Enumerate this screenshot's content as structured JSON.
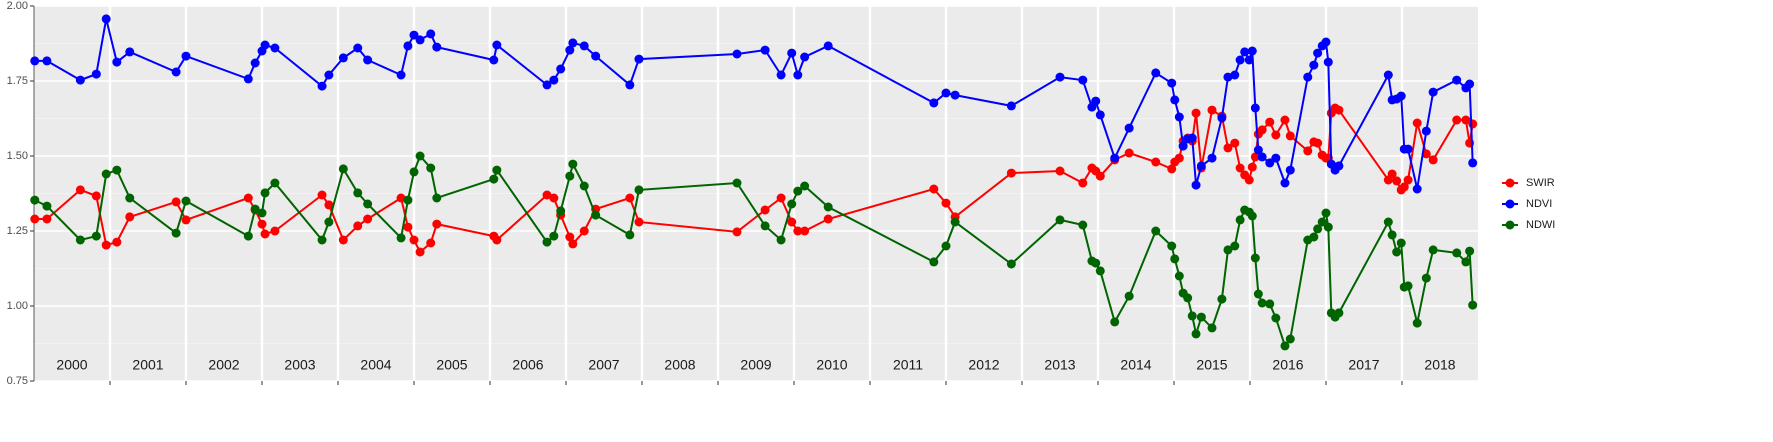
{
  "chart_data": {
    "type": "line",
    "x": [
      2000.01,
      2000.17,
      2000.61,
      2000.82,
      2000.95,
      2001.09,
      2001.26,
      2001.87,
      2002.0,
      2002.82,
      2002.91,
      2003.0,
      2003.04,
      2003.17,
      2003.79,
      2003.88,
      2004.07,
      2004.26,
      2004.39,
      2004.83,
      2004.92,
      2005.0,
      2005.08,
      2005.22,
      2005.3,
      2006.05,
      2006.09,
      2006.75,
      2006.84,
      2006.93,
      2007.05,
      2007.09,
      2007.24,
      2007.39,
      2007.84,
      2007.96,
      2009.25,
      2009.62,
      2009.83,
      2009.97,
      2010.05,
      2010.14,
      2010.45,
      2011.84,
      2012.0,
      2012.12,
      2012.86,
      2013.5,
      2013.8,
      2013.92,
      2013.97,
      2014.03,
      2014.22,
      2014.41,
      2014.76,
      2014.97,
      2015.01,
      2015.07,
      2015.12,
      2015.18,
      2015.24,
      2015.29,
      2015.36,
      2015.5,
      2015.63,
      2015.71,
      2015.8,
      2015.87,
      2015.93,
      2015.99,
      2016.03,
      2016.07,
      2016.11,
      2016.16,
      2016.26,
      2016.34,
      2016.46,
      2016.53,
      2016.76,
      2016.84,
      2016.89,
      2016.95,
      2017.0,
      2017.03,
      2017.07,
      2017.12,
      2017.17,
      2017.82,
      2017.87,
      2017.93,
      2017.99,
      2018.03,
      2018.08,
      2018.2,
      2018.32,
      2018.41,
      2018.72,
      2018.84,
      2018.89,
      2018.93
    ],
    "series": [
      {
        "name": "SWIR",
        "color": "#ff0000",
        "values": [
          1.29,
          1.29,
          1.387,
          1.367,
          1.203,
          1.213,
          1.297,
          1.347,
          1.287,
          1.36,
          1.32,
          1.273,
          1.24,
          1.25,
          1.37,
          1.337,
          1.22,
          1.267,
          1.29,
          1.36,
          1.263,
          1.22,
          1.18,
          1.21,
          1.273,
          1.233,
          1.22,
          1.37,
          1.36,
          1.303,
          1.23,
          1.207,
          1.25,
          1.323,
          1.36,
          1.28,
          1.247,
          1.32,
          1.36,
          1.28,
          1.25,
          1.25,
          1.29,
          1.39,
          1.343,
          1.297,
          1.443,
          1.45,
          1.41,
          1.46,
          1.45,
          1.433,
          1.487,
          1.51,
          1.48,
          1.457,
          1.48,
          1.493,
          1.55,
          1.56,
          1.55,
          1.643,
          1.46,
          1.653,
          1.633,
          1.527,
          1.543,
          1.46,
          1.437,
          1.42,
          1.463,
          1.497,
          1.573,
          1.587,
          1.613,
          1.57,
          1.62,
          1.567,
          1.517,
          1.547,
          1.543,
          1.503,
          1.493,
          1.493,
          1.643,
          1.66,
          1.653,
          1.42,
          1.44,
          1.417,
          1.387,
          1.397,
          1.42,
          1.61,
          1.507,
          1.487,
          1.62,
          1.62,
          1.543,
          1.607
        ]
      },
      {
        "name": "NDVI",
        "color": "#0000ff",
        "values": [
          1.817,
          1.817,
          1.753,
          1.773,
          1.957,
          1.813,
          1.847,
          1.78,
          1.833,
          1.757,
          1.81,
          1.85,
          1.87,
          1.86,
          1.733,
          1.77,
          1.827,
          1.86,
          1.82,
          1.77,
          1.867,
          1.903,
          1.887,
          1.907,
          1.863,
          1.82,
          1.87,
          1.737,
          1.753,
          1.79,
          1.853,
          1.877,
          1.867,
          1.833,
          1.737,
          1.823,
          1.84,
          1.853,
          1.77,
          1.843,
          1.77,
          1.83,
          1.867,
          1.677,
          1.71,
          1.703,
          1.667,
          1.763,
          1.753,
          1.663,
          1.683,
          1.637,
          1.493,
          1.593,
          1.777,
          1.743,
          1.687,
          1.63,
          1.533,
          1.557,
          1.56,
          1.403,
          1.467,
          1.493,
          1.627,
          1.763,
          1.77,
          1.82,
          1.847,
          1.82,
          1.85,
          1.66,
          1.52,
          1.497,
          1.477,
          1.493,
          1.41,
          1.453,
          1.763,
          1.803,
          1.843,
          1.867,
          1.88,
          1.813,
          1.473,
          1.453,
          1.467,
          1.77,
          1.687,
          1.69,
          1.7,
          1.523,
          1.523,
          1.39,
          1.583,
          1.713,
          1.753,
          1.727,
          1.74,
          1.477
        ]
      },
      {
        "name": "NDWI",
        "color": "#006400",
        "values": [
          1.353,
          1.333,
          1.22,
          1.233,
          1.44,
          1.453,
          1.36,
          1.243,
          1.35,
          1.233,
          1.323,
          1.31,
          1.377,
          1.41,
          1.22,
          1.28,
          1.457,
          1.377,
          1.34,
          1.227,
          1.353,
          1.447,
          1.5,
          1.46,
          1.36,
          1.423,
          1.453,
          1.213,
          1.233,
          1.317,
          1.433,
          1.473,
          1.4,
          1.303,
          1.237,
          1.387,
          1.41,
          1.267,
          1.22,
          1.34,
          1.383,
          1.4,
          1.33,
          1.147,
          1.2,
          1.28,
          1.14,
          1.287,
          1.27,
          1.15,
          1.143,
          1.117,
          0.947,
          1.033,
          1.25,
          1.2,
          1.157,
          1.1,
          1.043,
          1.027,
          0.967,
          0.907,
          0.963,
          0.927,
          1.023,
          1.187,
          1.2,
          1.287,
          1.32,
          1.313,
          1.3,
          1.16,
          1.04,
          1.01,
          1.007,
          0.96,
          0.867,
          0.89,
          1.22,
          1.23,
          1.257,
          1.28,
          1.31,
          1.263,
          0.977,
          0.963,
          0.977,
          1.28,
          1.237,
          1.18,
          1.21,
          1.063,
          1.067,
          0.943,
          1.093,
          1.187,
          1.177,
          1.147,
          1.183,
          1.003
        ]
      }
    ],
    "xlim": [
      2000,
      2019
    ],
    "xticks": [
      {
        "value": 2000.5,
        "label": "2000"
      },
      {
        "value": 2001.5,
        "label": "2001"
      },
      {
        "value": 2002.5,
        "label": "2002"
      },
      {
        "value": 2003.5,
        "label": "2003"
      },
      {
        "value": 2004.5,
        "label": "2004"
      },
      {
        "value": 2005.5,
        "label": "2005"
      },
      {
        "value": 2006.5,
        "label": "2006"
      },
      {
        "value": 2007.5,
        "label": "2007"
      },
      {
        "value": 2008.5,
        "label": "2008"
      },
      {
        "value": 2009.5,
        "label": "2009"
      },
      {
        "value": 2010.5,
        "label": "2010"
      },
      {
        "value": 2011.5,
        "label": "2011"
      },
      {
        "value": 2012.5,
        "label": "2012"
      },
      {
        "value": 2013.5,
        "label": "2013"
      },
      {
        "value": 2014.5,
        "label": "2014"
      },
      {
        "value": 2015.5,
        "label": "2015"
      },
      {
        "value": 2016.5,
        "label": "2016"
      },
      {
        "value": 2017.5,
        "label": "2017"
      },
      {
        "value": 2018.5,
        "label": "2018"
      }
    ],
    "ylim": [
      0.75,
      2.0
    ],
    "yticks": [
      0.75,
      {
        "value": 1.0,
        "label": "1.00"
      },
      1.25,
      {
        "value": 1.5,
        "label": "1.50"
      },
      1.75,
      {
        "value": 2.0,
        "label": "2.00"
      }
    ],
    "grid": true,
    "legend": "right"
  }
}
